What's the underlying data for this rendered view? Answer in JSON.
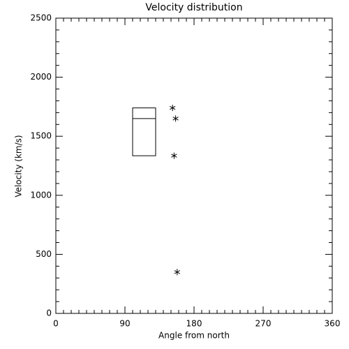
{
  "chart_data": {
    "type": "scatter",
    "title": "Velocity distribution",
    "x_label": "Angle from north",
    "y_label": "Velocity (km/s)",
    "x": [
      152,
      156,
      154,
      158
    ],
    "values": [
      1740,
      1650,
      1335,
      350
    ],
    "color": "#000000",
    "box": {
      "x": [
        100,
        130
      ],
      "low": 1335,
      "median": 1650,
      "high": 1740
    },
    "xlim": [
      0,
      360
    ],
    "xticks": [
      0,
      90,
      180,
      270,
      360
    ],
    "xminorticks": [
      10,
      20,
      30,
      40,
      50,
      60,
      70,
      80,
      100,
      110,
      120,
      130,
      140,
      150,
      160,
      170,
      190,
      200,
      210,
      220,
      230,
      240,
      250,
      260,
      280,
      290,
      300,
      310,
      320,
      330,
      340,
      350
    ],
    "ylim": [
      0,
      2500
    ],
    "yticks": [
      0,
      500,
      1000,
      1500,
      2000,
      2500
    ],
    "yminorticks": [
      100,
      200,
      300,
      400,
      600,
      700,
      800,
      900,
      1100,
      1200,
      1300,
      1400,
      1600,
      1700,
      1800,
      1900,
      2100,
      2200,
      2300,
      2400
    ],
    "grid": false
  }
}
